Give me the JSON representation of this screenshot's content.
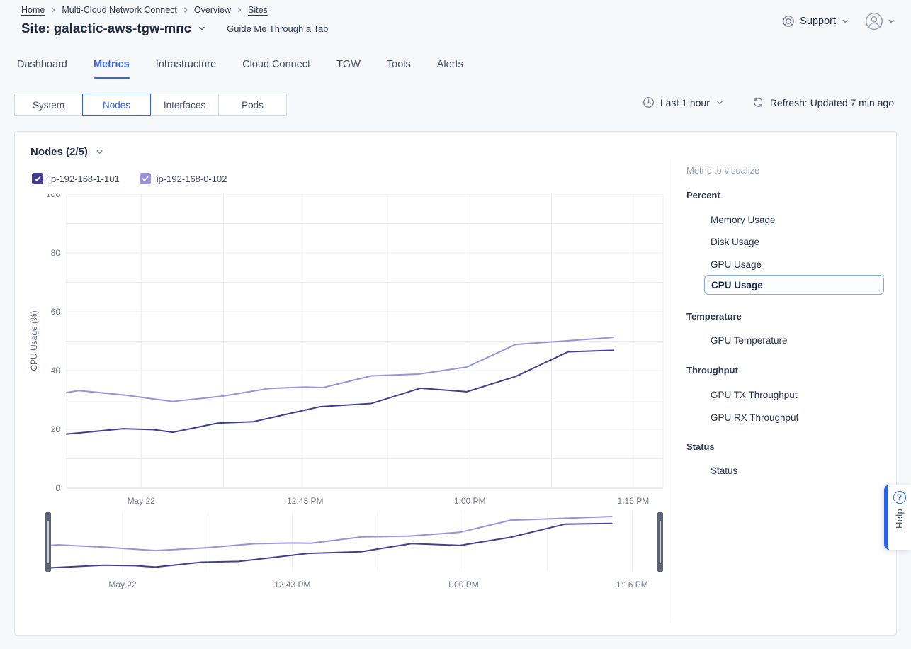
{
  "breadcrumb": {
    "items": [
      {
        "label": "Home",
        "link": true
      },
      {
        "label": "Multi-Cloud Network Connect",
        "link": false
      },
      {
        "label": "Overview",
        "link": false
      },
      {
        "label": "Sites",
        "link": true
      }
    ]
  },
  "header": {
    "site_label": "Site: galactic-aws-tgw-mnc",
    "guide_link": "Guide Me Through a Tab",
    "support_label": "Support"
  },
  "tabs": {
    "items": [
      "Dashboard",
      "Metrics",
      "Infrastructure",
      "Cloud Connect",
      "TGW",
      "Tools",
      "Alerts"
    ],
    "active": "Metrics"
  },
  "subtabs": {
    "items": [
      "System",
      "Nodes",
      "Interfaces",
      "Pods"
    ],
    "active": "Nodes"
  },
  "time_controls": {
    "range_label": "Last 1 hour",
    "refresh_label": "Refresh: Updated 7 min ago"
  },
  "panel": {
    "title": "Nodes (2/5)"
  },
  "legend": {
    "items": [
      {
        "label": "ip-192-168-1-101",
        "color": "#433e93",
        "checked": true
      },
      {
        "label": "ip-192-168-0-102",
        "color": "#9a92da",
        "checked": true
      }
    ]
  },
  "metric_sidebar": {
    "title": "Metric to visualize",
    "selected": "CPU Usage",
    "groups": [
      {
        "name": "Percent",
        "items": [
          "Memory Usage",
          "Disk Usage",
          "GPU Usage",
          "CPU Usage"
        ]
      },
      {
        "name": "Temperature",
        "items": [
          "GPU Temperature"
        ]
      },
      {
        "name": "Throughput",
        "items": [
          "GPU TX Throughput",
          "GPU RX Throughput"
        ]
      },
      {
        "name": "Status",
        "items": [
          "Status"
        ]
      }
    ]
  },
  "help": {
    "label": "Help",
    "icon_glyph": "?"
  },
  "colors": {
    "accent_blue": "#3a66e4",
    "help_blue": "#2563eb",
    "grid": "#eaecf2",
    "axis": "#d7dbe2",
    "tick_text": "#6e7787",
    "brush_handle": "#5c6373",
    "series_dark": "#433e93",
    "series_light": "#9a92da"
  },
  "chart_data": {
    "type": "line",
    "title": "",
    "ylabel": "CPU Usage (%)",
    "xlabel": "",
    "ylim": [
      0,
      100
    ],
    "y_ticks": [
      0,
      20,
      40,
      60,
      80,
      100
    ],
    "y_grid_step": 10,
    "grid": true,
    "legend_position": "top-left",
    "mini_ylim": [
      16,
      54
    ],
    "x_ticks": [
      {
        "f": 0.125,
        "label": "May 22"
      },
      {
        "f": 0.263,
        "label": ""
      },
      {
        "f": 0.4,
        "label": "12:43 PM"
      },
      {
        "f": 0.538,
        "label": ""
      },
      {
        "f": 0.676,
        "label": "1:00 PM"
      },
      {
        "f": 0.813,
        "label": ""
      },
      {
        "f": 0.95,
        "label": "1:16 PM"
      }
    ],
    "series": [
      {
        "name": "ip-192-168-1-101",
        "color": "#433e93",
        "points": [
          [
            0,
            18.4
          ],
          [
            0.095,
            20.2
          ],
          [
            0.145,
            19.9
          ],
          [
            0.178,
            19.0
          ],
          [
            0.253,
            22.1
          ],
          [
            0.313,
            22.6
          ],
          [
            0.425,
            27.7
          ],
          [
            0.511,
            28.8
          ],
          [
            0.593,
            34.0
          ],
          [
            0.671,
            32.8
          ],
          [
            0.753,
            38.0
          ],
          [
            0.841,
            46.4
          ],
          [
            0.917,
            46.9
          ]
        ]
      },
      {
        "name": "ip-192-168-0-102",
        "color": "#9a92da",
        "points": [
          [
            0,
            32.5
          ],
          [
            0.02,
            33.2
          ],
          [
            0.1,
            31.6
          ],
          [
            0.178,
            29.5
          ],
          [
            0.261,
            31.3
          ],
          [
            0.339,
            33.9
          ],
          [
            0.4,
            34.4
          ],
          [
            0.43,
            34.2
          ],
          [
            0.511,
            38.2
          ],
          [
            0.59,
            38.8
          ],
          [
            0.671,
            41.2
          ],
          [
            0.753,
            48.9
          ],
          [
            0.81,
            49.7
          ],
          [
            0.917,
            51.3
          ]
        ]
      }
    ]
  }
}
